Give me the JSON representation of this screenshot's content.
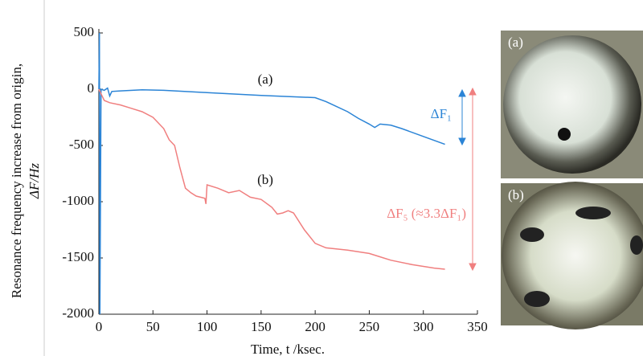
{
  "chart_data": {
    "type": "line",
    "y_label_line1": "Resonance frequency increase from origin,",
    "y_label_line2": "ΔF/Hz",
    "x_label": "Time, t /ksec.",
    "xlim": [
      0,
      350
    ],
    "xticks": [
      0,
      50,
      100,
      150,
      200,
      250,
      300,
      350
    ],
    "ylim": [
      -2000,
      500
    ],
    "yticks": [
      500,
      0,
      -500,
      -1000,
      -1500,
      -2000
    ],
    "series": [
      {
        "name": "(a)",
        "color": "#2b84d6",
        "x": [
          0,
          0.5,
          1,
          2,
          5,
          8,
          10,
          12,
          20,
          40,
          60,
          100,
          150,
          200,
          210,
          230,
          240,
          250,
          255,
          260,
          270,
          280,
          300,
          320
        ],
        "values": [
          0,
          500,
          -2000,
          0,
          -10,
          10,
          -60,
          -20,
          -15,
          -5,
          -10,
          -30,
          -55,
          -75,
          -110,
          -200,
          -260,
          -310,
          -340,
          -310,
          -320,
          -350,
          -420,
          -490
        ]
      },
      {
        "name": "(b)",
        "color": "#f07f7f",
        "x": [
          0,
          5,
          10,
          20,
          30,
          40,
          50,
          60,
          65,
          70,
          75,
          80,
          85,
          90,
          98,
          99,
          100,
          110,
          120,
          130,
          140,
          150,
          160,
          165,
          170,
          175,
          180,
          190,
          200,
          210,
          230,
          250,
          260,
          270,
          290,
          310,
          320
        ],
        "values": [
          0,
          -100,
          -120,
          -140,
          -170,
          -200,
          -250,
          -350,
          -450,
          -500,
          -700,
          -880,
          -920,
          -950,
          -970,
          -1020,
          -850,
          -880,
          -920,
          -900,
          -960,
          -980,
          -1050,
          -1110,
          -1100,
          -1080,
          -1100,
          -1250,
          -1370,
          -1410,
          -1430,
          -1460,
          -1490,
          -1520,
          -1560,
          -1590,
          -1600
        ]
      }
    ],
    "annotations": [
      "ΔF₁",
      "ΔF₅ (≈3.3ΔF₁)"
    ]
  },
  "photos": [
    {
      "label": "(a)"
    },
    {
      "label": "(b)"
    }
  ]
}
